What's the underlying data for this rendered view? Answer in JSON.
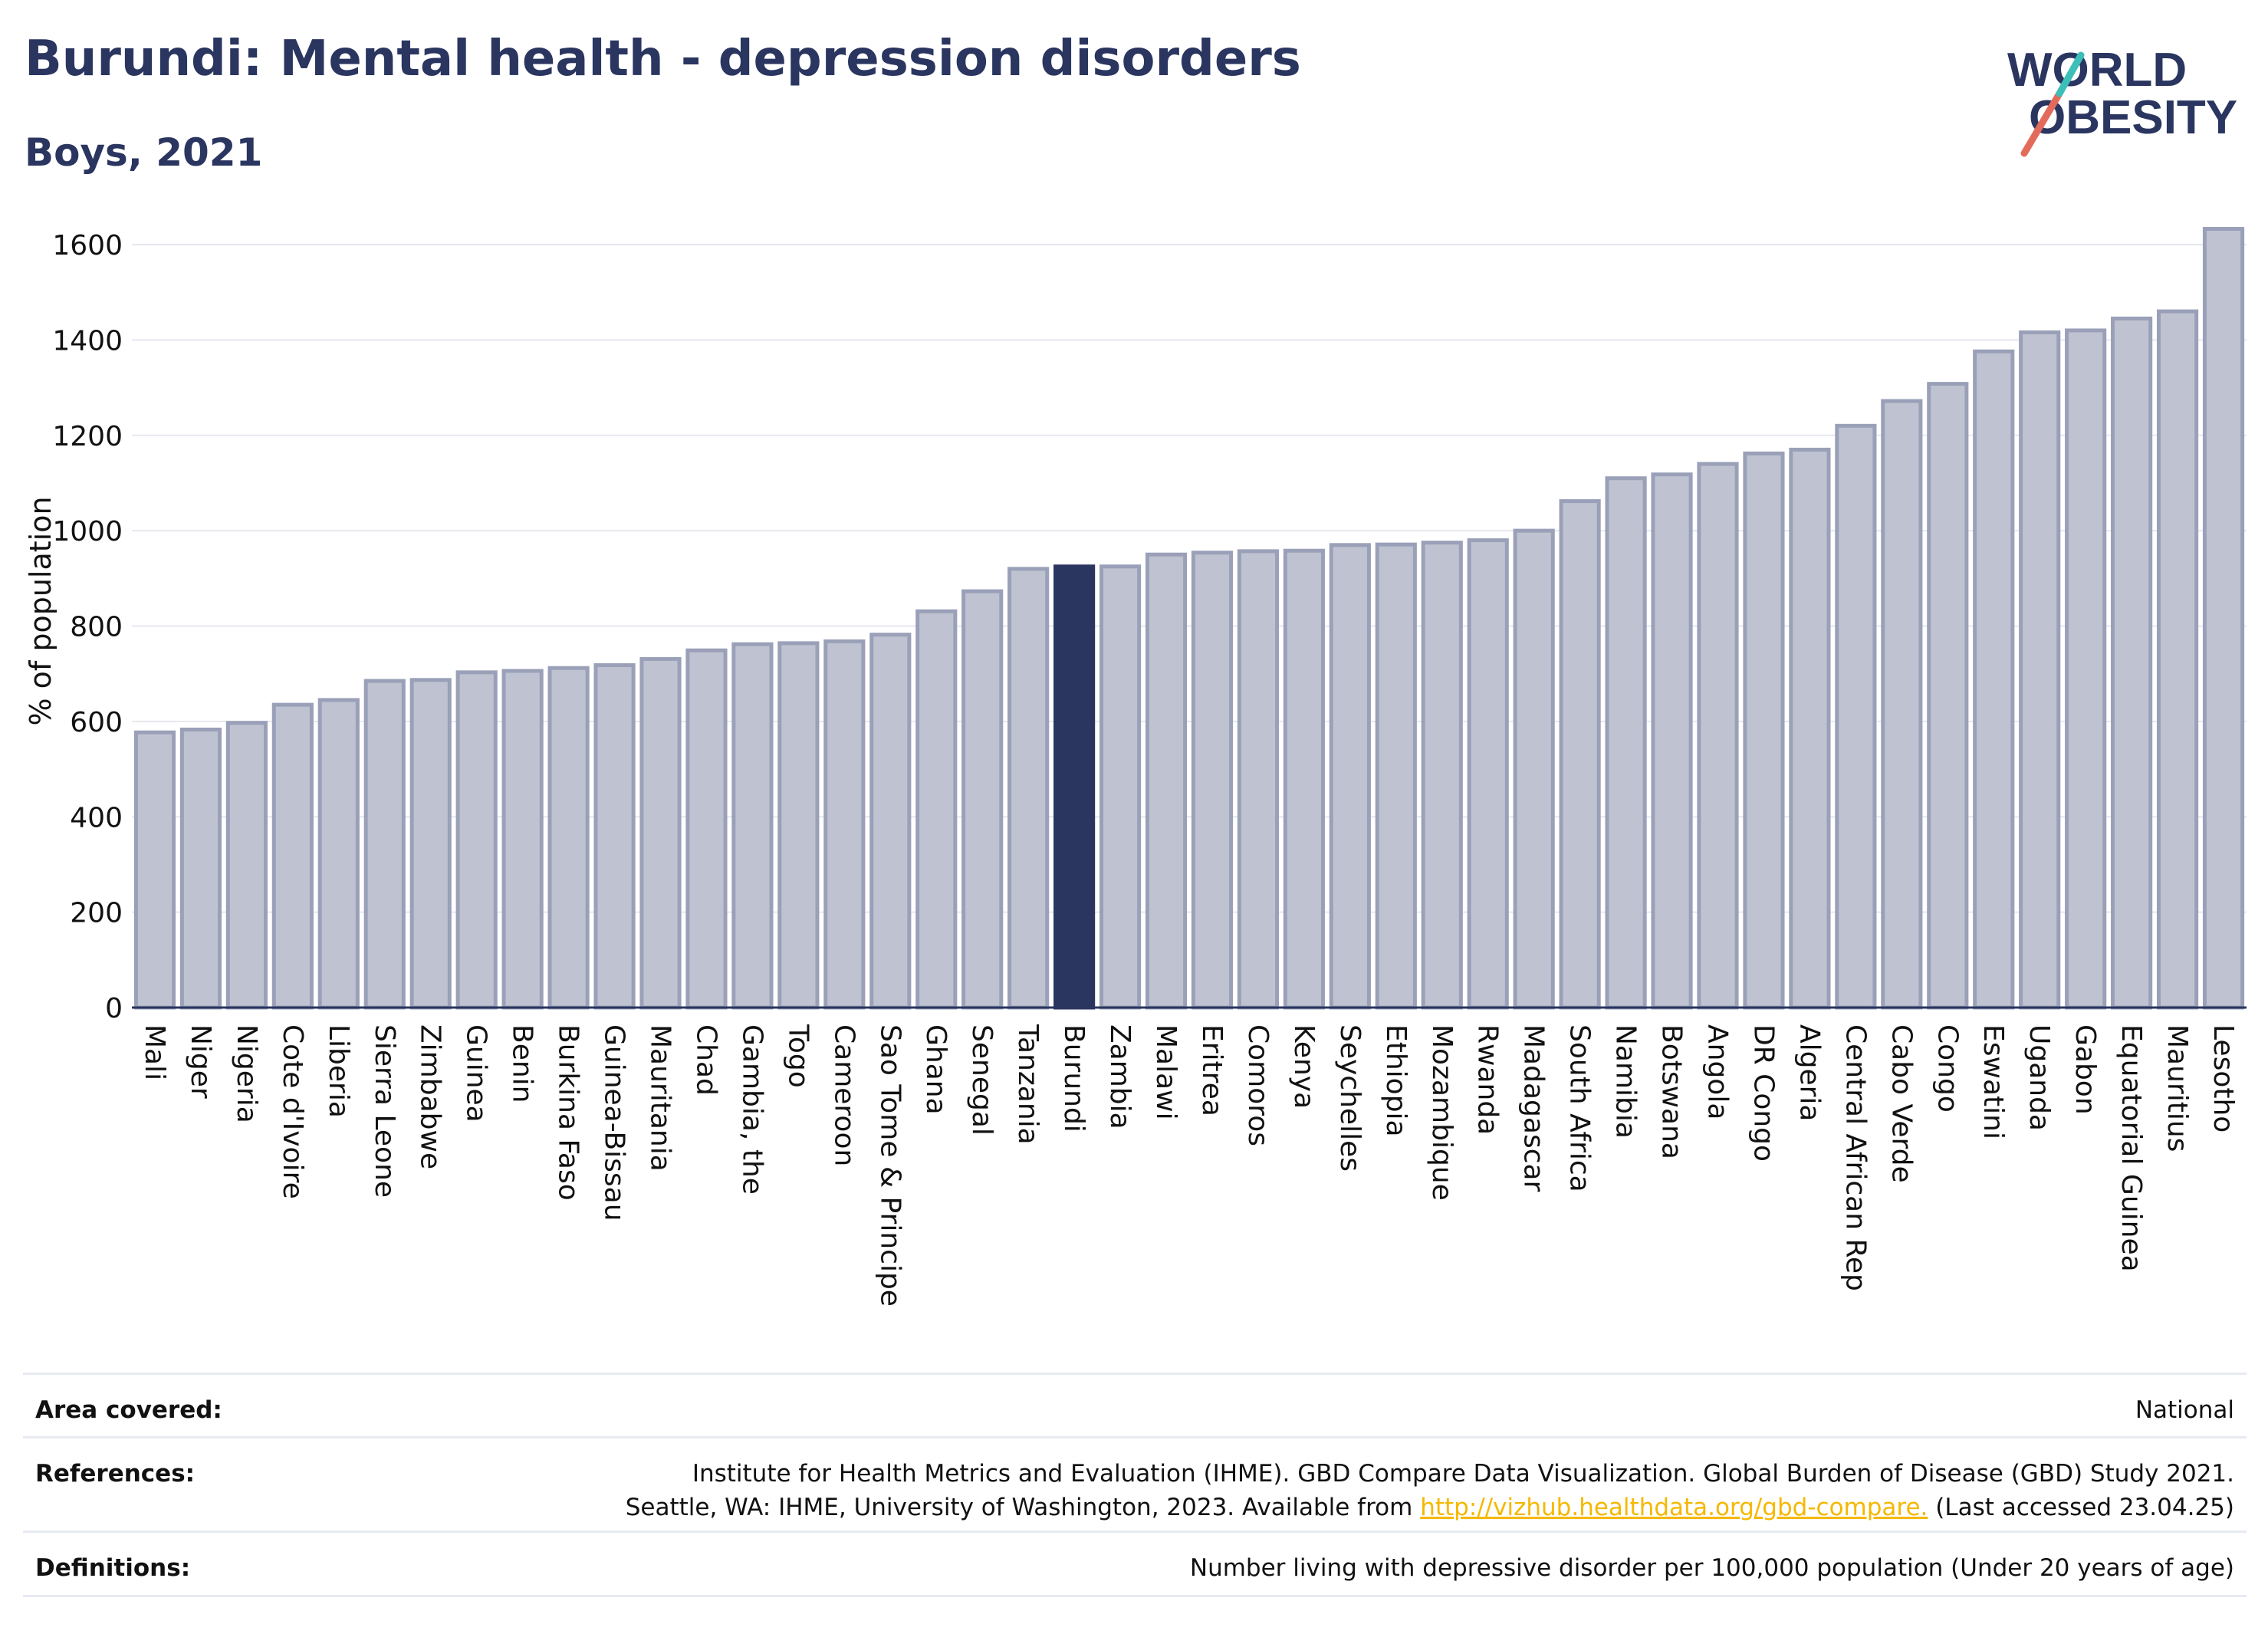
{
  "header": {
    "title": "Burundi: Mental health - depression disorders",
    "subtitle": "Boys, 2021",
    "logo_line1": "WORLD",
    "logo_line2": "OBESITY"
  },
  "colors": {
    "highlight": "#2a3560",
    "bar_fill": "#bfc3d1",
    "bar_stroke": "#9aa0b8",
    "logo_slash_red": "#e36b5b",
    "logo_slash_teal": "#3bbfb8",
    "link": "#f5b800"
  },
  "chart_data": {
    "type": "bar",
    "title": "Burundi: Mental health - depression disorders",
    "subtitle": "Boys, 2021",
    "ylabel": "% of population",
    "xlabel": "",
    "ylim": [
      0,
      1700
    ],
    "yticks": [
      0,
      200,
      400,
      600,
      800,
      1000,
      1200,
      1400,
      1600
    ],
    "grid": true,
    "highlight_category": "Burundi",
    "categories": [
      "Mali",
      "Niger",
      "Nigeria",
      "Cote d'Ivoire",
      "Liberia",
      "Sierra Leone",
      "Zimbabwe",
      "Guinea",
      "Benin",
      "Burkina Faso",
      "Guinea-Bissau",
      "Mauritania",
      "Chad",
      "Gambia, the",
      "Togo",
      "Cameroon",
      "Sao Tome & Principe",
      "Ghana",
      "Senegal",
      "Tanzania",
      "Burundi",
      "Zambia",
      "Malawi",
      "Eritrea",
      "Comoros",
      "Kenya",
      "Seychelles",
      "Ethiopia",
      "Mozambique",
      "Rwanda",
      "Madagascar",
      "South Africa",
      "Namibia",
      "Botswana",
      "Angola",
      "DR Congo",
      "Algeria",
      "Central African Rep",
      "Cabo Verde",
      "Congo",
      "Eswatini",
      "Uganda",
      "Gabon",
      "Equatorial Guinea",
      "Mauritius",
      "Lesotho"
    ],
    "values": [
      577,
      583,
      597,
      635,
      645,
      685,
      687,
      703,
      706,
      712,
      718,
      731,
      749,
      762,
      764,
      768,
      782,
      831,
      873,
      920,
      925,
      925,
      950,
      954,
      957,
      958,
      970,
      971,
      975,
      980,
      1000,
      1062,
      1110,
      1118,
      1140,
      1162,
      1170,
      1220,
      1272,
      1308,
      1376,
      1416,
      1420,
      1445,
      1460,
      1633
    ]
  },
  "info": {
    "area_label": "Area covered:",
    "area_value": "National",
    "references_label": "References:",
    "references_line1": "Institute for Health Metrics and Evaluation (IHME). GBD Compare Data Visualization. Global Burden of Disease (GBD) Study 2021.",
    "references_line2_prefix": "Seattle, WA: IHME, University of Washington, 2023. Available from ",
    "references_link": "http://vizhub.healthdata.org/gbd-compare.",
    "references_line2_suffix": " (Last accessed 23.04.25)",
    "definitions_label": "Definitions:",
    "definitions_value": "Number living with depressive disorder per 100,000 population (Under 20 years of age)"
  }
}
